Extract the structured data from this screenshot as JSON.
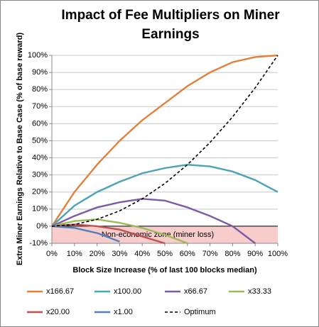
{
  "chart_data": {
    "type": "line",
    "title": "Impact of Fee Multipliers on Miner Earnings",
    "x_label": "Block Size Increase (% of last 100 blocks median)",
    "y_label": "Extra Miner Earnings Relative to Base Case (% of base reward)",
    "x": [
      0,
      10,
      20,
      30,
      40,
      50,
      60,
      70,
      80,
      90,
      100
    ],
    "xlim": [
      0,
      100
    ],
    "xticks": [
      {
        "value": 0,
        "label": "0%"
      },
      {
        "value": 10,
        "label": "10%"
      },
      {
        "value": 20,
        "label": "20%"
      },
      {
        "value": 30,
        "label": "30%"
      },
      {
        "value": 40,
        "label": "40%"
      },
      {
        "value": 50,
        "label": "50%"
      },
      {
        "value": 60,
        "label": "60%"
      },
      {
        "value": 70,
        "label": "70%"
      },
      {
        "value": 80,
        "label": "80%"
      },
      {
        "value": 90,
        "label": "90%"
      },
      {
        "value": 100,
        "label": "100%"
      }
    ],
    "ylim": [
      -10,
      100
    ],
    "yticks": [
      {
        "value": -10,
        "label": "-10%"
      },
      {
        "value": 0,
        "label": "0%"
      },
      {
        "value": 10,
        "label": "10%"
      },
      {
        "value": 20,
        "label": "20%"
      },
      {
        "value": 30,
        "label": "30%"
      },
      {
        "value": 40,
        "label": "40%"
      },
      {
        "value": 50,
        "label": "50%"
      },
      {
        "value": 60,
        "label": "60%"
      },
      {
        "value": 70,
        "label": "70%"
      },
      {
        "value": 80,
        "label": "80%"
      },
      {
        "value": 90,
        "label": "90%"
      },
      {
        "value": 100,
        "label": "100%"
      }
    ],
    "grid": true,
    "legend": "bottom",
    "shaded_band": {
      "from": -10,
      "to": 0,
      "color": "#f9cccc",
      "label": "Non-economic zone (miner loss)"
    },
    "series": [
      {
        "name": "x166.67",
        "color": "#e0803a",
        "values": [
          0,
          20,
          36,
          50,
          62,
          72,
          82,
          90,
          96,
          99,
          100
        ]
      },
      {
        "name": "x100.00",
        "color": "#4aa3b8",
        "values": [
          0,
          12,
          20,
          26,
          31,
          34,
          36,
          35,
          32,
          27,
          20
        ]
      },
      {
        "name": "x66.67",
        "color": "#7b5aa6",
        "values": [
          0,
          6,
          11,
          14,
          16,
          15,
          11,
          6,
          0,
          -10,
          null
        ]
      },
      {
        "name": "x33.33",
        "color": "#9bbb59",
        "values": [
          0,
          3,
          4,
          2,
          -1,
          -5,
          -10,
          null,
          null,
          null,
          null
        ]
      },
      {
        "name": "x20.00",
        "color": "#c0504d",
        "values": [
          0,
          1,
          0,
          -2,
          -6,
          -10,
          null,
          null,
          null,
          null,
          null
        ]
      },
      {
        "name": "x1.00",
        "color": "#4f81bd",
        "values": [
          0,
          -1,
          -4,
          -9,
          null,
          null,
          null,
          null,
          null,
          null,
          null
        ]
      },
      {
        "name": "Optimum",
        "color": "#000000",
        "dashed": true,
        "values": [
          0,
          1,
          4,
          9,
          16,
          25,
          36,
          49,
          64,
          81,
          100
        ]
      }
    ]
  }
}
